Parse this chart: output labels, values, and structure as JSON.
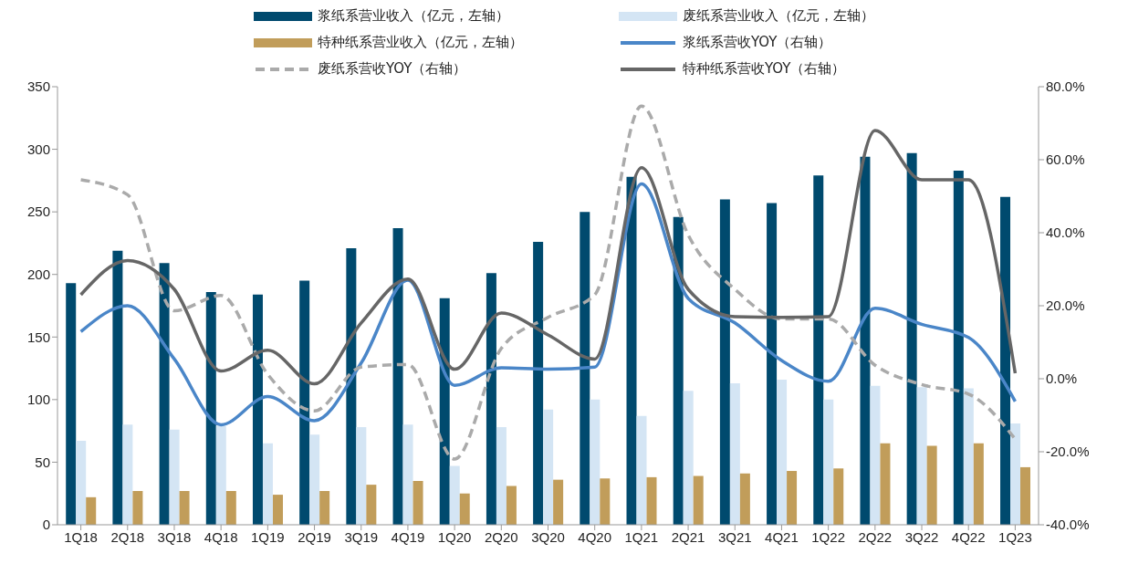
{
  "chart_data": {
    "type": "bar",
    "categories": [
      "1Q18",
      "2Q18",
      "3Q18",
      "4Q18",
      "1Q19",
      "2Q19",
      "3Q19",
      "4Q19",
      "1Q20",
      "2Q20",
      "3Q20",
      "4Q20",
      "1Q21",
      "2Q21",
      "3Q21",
      "4Q21",
      "1Q22",
      "2Q22",
      "3Q22",
      "4Q22",
      "1Q23"
    ],
    "series": [
      {
        "name": "浆纸系营业收入（亿元，左轴）",
        "color": "#004a6e",
        "values": [
          193,
          219,
          209,
          186,
          184,
          195,
          221,
          237,
          181,
          201,
          226,
          250,
          278,
          246,
          260,
          257,
          279,
          294,
          297,
          283,
          262
        ]
      },
      {
        "name": "废纸系营业收入（亿元，左轴）",
        "color": "#d4e5f4",
        "values": [
          67,
          80,
          76,
          79,
          65,
          72,
          78,
          80,
          47,
          78,
          92,
          100,
          87,
          107,
          113,
          116,
          100,
          111,
          110,
          109,
          81
        ]
      },
      {
        "name": "特种纸系营业收入（亿元，左轴）",
        "color": "#c19d5a",
        "values": [
          22,
          27,
          27,
          27,
          24,
          27,
          32,
          35,
          25,
          31,
          36,
          37,
          38,
          39,
          41,
          43,
          45,
          65,
          63,
          65,
          46
        ]
      },
      {
        "name": "浆纸系营收YOY（右轴）",
        "type": "line",
        "axis": "y2",
        "color": "#4a86c8",
        "line_style": "solid",
        "values": [
          12.9,
          20,
          5.4,
          -12.6,
          -4.9,
          -11.5,
          4.3,
          27,
          -1.8,
          3,
          2.6,
          3.2,
          53.4,
          22,
          15.3,
          5,
          -0.7,
          19.3,
          14.9,
          11.3,
          -6.2
        ]
      },
      {
        "name": "废纸系营收YOY（右轴）",
        "type": "line",
        "axis": "y2",
        "color": "#aaaaaa",
        "line_style": "dashed",
        "values": [
          54.5,
          50.4,
          18.6,
          22.8,
          1.2,
          -8.8,
          3.2,
          3.9,
          -22,
          8.3,
          16.8,
          23,
          74.7,
          39.4,
          24.5,
          16.4,
          16.4,
          3.7,
          -1.6,
          -4.2,
          -16.5
        ]
      },
      {
        "name": "特种纸系营收YOY（右轴）",
        "type": "line",
        "axis": "y2",
        "color": "#666666",
        "line_style": "solid",
        "values": [
          23,
          32.4,
          24.5,
          2.1,
          7.8,
          -1.4,
          15.3,
          27.3,
          2.6,
          18,
          12,
          5.4,
          57.8,
          24.5,
          17,
          16.8,
          17,
          68,
          54.5,
          54.5,
          1.5
        ]
      }
    ],
    "ylim": [
      0,
      350
    ],
    "yticks": [
      0,
      50,
      100,
      150,
      200,
      250,
      300,
      350
    ],
    "y2lim": [
      -40,
      80
    ],
    "y2ticks": [
      {
        "value": -40,
        "label": "-40.0%"
      },
      {
        "value": -20,
        "label": "-20.0%"
      },
      {
        "value": 0,
        "label": "0.0%"
      },
      {
        "value": 20,
        "label": "20.0%"
      },
      {
        "value": 40,
        "label": "40.0%"
      },
      {
        "value": 60,
        "label": "60.0%"
      },
      {
        "value": 80,
        "label": "80.0%"
      }
    ],
    "legend": "top",
    "marker": "none"
  }
}
